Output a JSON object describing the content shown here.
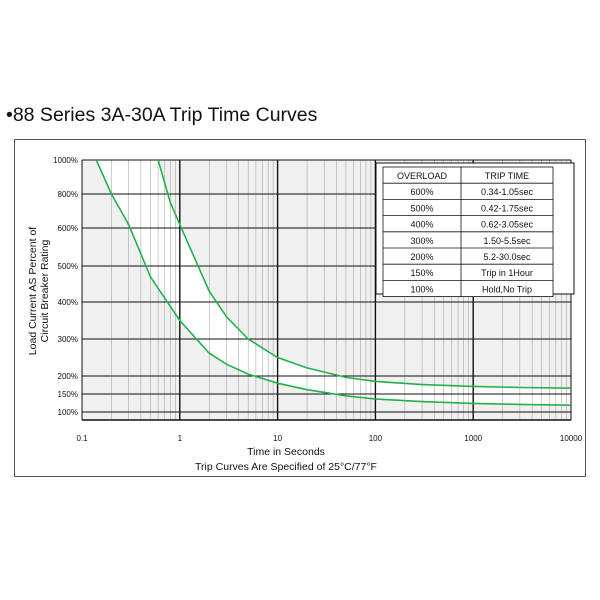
{
  "page": {
    "title": "•88 Series 3A-30A Trip Time Curves"
  },
  "chart_data": {
    "type": "line",
    "x_scale": "log",
    "xlim": [
      0.1,
      10000
    ],
    "x_ticks": [
      "0.1",
      "1",
      "10",
      "100",
      "1000",
      "10000"
    ],
    "y_ticks": [
      {
        "value": 100,
        "label": "100%"
      },
      {
        "value": 150,
        "label": "150%"
      },
      {
        "value": 200,
        "label": "200%"
      },
      {
        "value": 300,
        "label": "300%"
      },
      {
        "value": 400,
        "label": "400%"
      },
      {
        "value": 500,
        "label": "500%"
      },
      {
        "value": 600,
        "label": "600%"
      },
      {
        "value": 800,
        "label": "800%"
      },
      {
        "value": 1000,
        "label": "1000%"
      }
    ],
    "xlabel": "Time in Seconds",
    "subtitle": "Trip Curves Are Specified of 25°C/77°F",
    "ylabel_lines": [
      "Load Current AS Percent of",
      "Circuit Breaker Rating"
    ],
    "grid": true,
    "band_fill": "#ffffff",
    "curve_color": "#22b14c",
    "series": [
      {
        "points": [
          [
            0.14,
            1000
          ],
          [
            0.2,
            800
          ],
          [
            0.3,
            620
          ],
          [
            0.5,
            470
          ],
          [
            1,
            350
          ],
          [
            2,
            262
          ],
          [
            3,
            232
          ],
          [
            5,
            205
          ],
          [
            10,
            180
          ],
          [
            20,
            162
          ],
          [
            50,
            145
          ],
          [
            100,
            136
          ],
          [
            300,
            129
          ],
          [
            1000,
            124
          ],
          [
            3000,
            121
          ],
          [
            10000,
            119
          ]
        ]
      },
      {
        "points": [
          [
            0.6,
            1000
          ],
          [
            0.8,
            750
          ],
          [
            1,
            620
          ],
          [
            2,
            430
          ],
          [
            3,
            360
          ],
          [
            5,
            300
          ],
          [
            10,
            250
          ],
          [
            20,
            222
          ],
          [
            50,
            196
          ],
          [
            100,
            185
          ],
          [
            300,
            176
          ],
          [
            1000,
            171
          ],
          [
            3000,
            168
          ],
          [
            10000,
            166
          ]
        ]
      }
    ],
    "table": {
      "headers": [
        "OVERLOAD",
        "TRIP TIME"
      ],
      "rows": [
        [
          "600%",
          "0.34-1.05sec"
        ],
        [
          "500%",
          "0.42-1.75sec"
        ],
        [
          "400%",
          "0.62-3.05sec"
        ],
        [
          "300%",
          "1.50-5.5sec"
        ],
        [
          "200%",
          "5.2-30.0sec"
        ],
        [
          "150%",
          "Trip in 1Hour"
        ],
        [
          "100%",
          "Hold,No Trip"
        ]
      ]
    }
  }
}
